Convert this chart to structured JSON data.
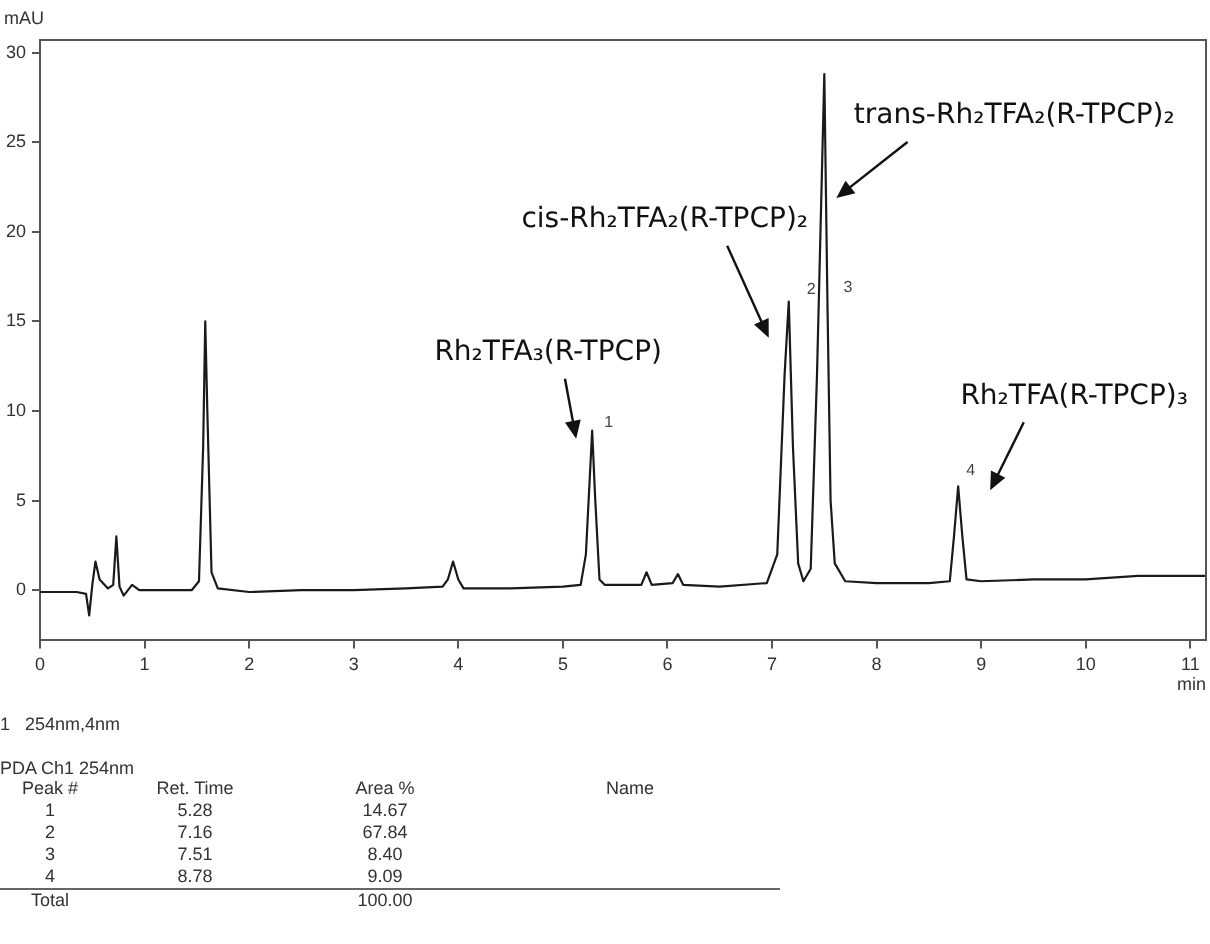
{
  "chart_data": {
    "type": "line",
    "xlabel": "min",
    "ylabel": "mAU",
    "marker": "none",
    "line_style": "solid",
    "grid": false,
    "legend": false,
    "xlim": [
      0,
      11.15
    ],
    "xticks": [
      0,
      1,
      2,
      3,
      4,
      5,
      6,
      7,
      8,
      9,
      10,
      11
    ],
    "ylim": [
      -2.8,
      30.7
    ],
    "yticks": [
      0,
      5,
      10,
      15,
      20,
      25,
      30
    ],
    "series": [
      {
        "color": "#1a1a1a",
        "x": [
          0,
          0.35,
          0.44,
          0.47,
          0.5,
          0.53,
          0.57,
          0.65,
          0.7,
          0.73,
          0.76,
          0.8,
          0.88,
          0.95,
          1.2,
          1.45,
          1.52,
          1.56,
          1.58,
          1.6,
          1.64,
          1.7,
          2,
          2.5,
          3,
          3.5,
          3.85,
          3.9,
          3.95,
          4.0,
          4.05,
          4.5,
          5.0,
          5.17,
          5.22,
          5.28,
          5.31,
          5.35,
          5.4,
          5.75,
          5.8,
          5.85,
          6.05,
          6.1,
          6.15,
          6.5,
          6.95,
          7.05,
          7.12,
          7.16,
          7.2,
          7.25,
          7.3,
          7.37,
          7.43,
          7.5,
          7.53,
          7.56,
          7.6,
          7.7,
          8.0,
          8.5,
          8.7,
          8.74,
          8.78,
          8.82,
          8.86,
          9,
          9.5,
          10,
          10.5,
          11.15
        ],
        "values": [
          -0.1,
          -0.1,
          -0.2,
          -1.4,
          0.3,
          1.6,
          0.6,
          0.1,
          0.3,
          3.0,
          0.2,
          -0.3,
          0.3,
          0,
          0,
          0,
          0.5,
          8,
          15,
          10,
          1,
          0.1,
          -0.1,
          0,
          0,
          0.1,
          0.2,
          0.6,
          1.6,
          0.6,
          0.1,
          0.1,
          0.2,
          0.3,
          2,
          8.9,
          5,
          0.6,
          0.3,
          0.3,
          1.0,
          0.3,
          0.4,
          0.9,
          0.3,
          0.2,
          0.4,
          2,
          12,
          16.1,
          8,
          1.5,
          0.5,
          1.2,
          12,
          28.8,
          16,
          5,
          1.5,
          0.5,
          0.4,
          0.4,
          0.5,
          3,
          5.8,
          3,
          0.6,
          0.5,
          0.6,
          0.6,
          0.8,
          0.8
        ]
      }
    ],
    "annotations": [
      {
        "text": "Rh₂TFA₃(R-TPCP)",
        "x": 5.28,
        "y": 8.9
      },
      {
        "text": "cis-Rh₂TFA₂(R-TPCP)₂",
        "x": 7.16,
        "y": 16.1
      },
      {
        "text": "trans-Rh₂TFA₂(R-TPCP)₂",
        "x": 7.5,
        "y": 28.8
      },
      {
        "text": "Rh₂TFA(R-TPCP)₃",
        "x": 8.78,
        "y": 5.8
      },
      {
        "text": "1",
        "x": 5.28,
        "y": 8.9
      },
      {
        "text": "2",
        "x": 7.16,
        "y": 16.1
      },
      {
        "text": "3",
        "x": 7.53,
        "y": 16
      },
      {
        "text": "4",
        "x": 8.78,
        "y": 5.8
      },
      "1   254nm,4nm",
      "PDA Ch1 254nm",
      "Peak #",
      "Ret. Time",
      "Area %",
      "Name",
      "1",
      "5.28",
      "14.67",
      "2",
      "7.16",
      "67.84",
      "3",
      "7.51",
      "8.40",
      "4",
      "8.78",
      "9.09",
      "Total",
      "100.00"
    ]
  }
}
